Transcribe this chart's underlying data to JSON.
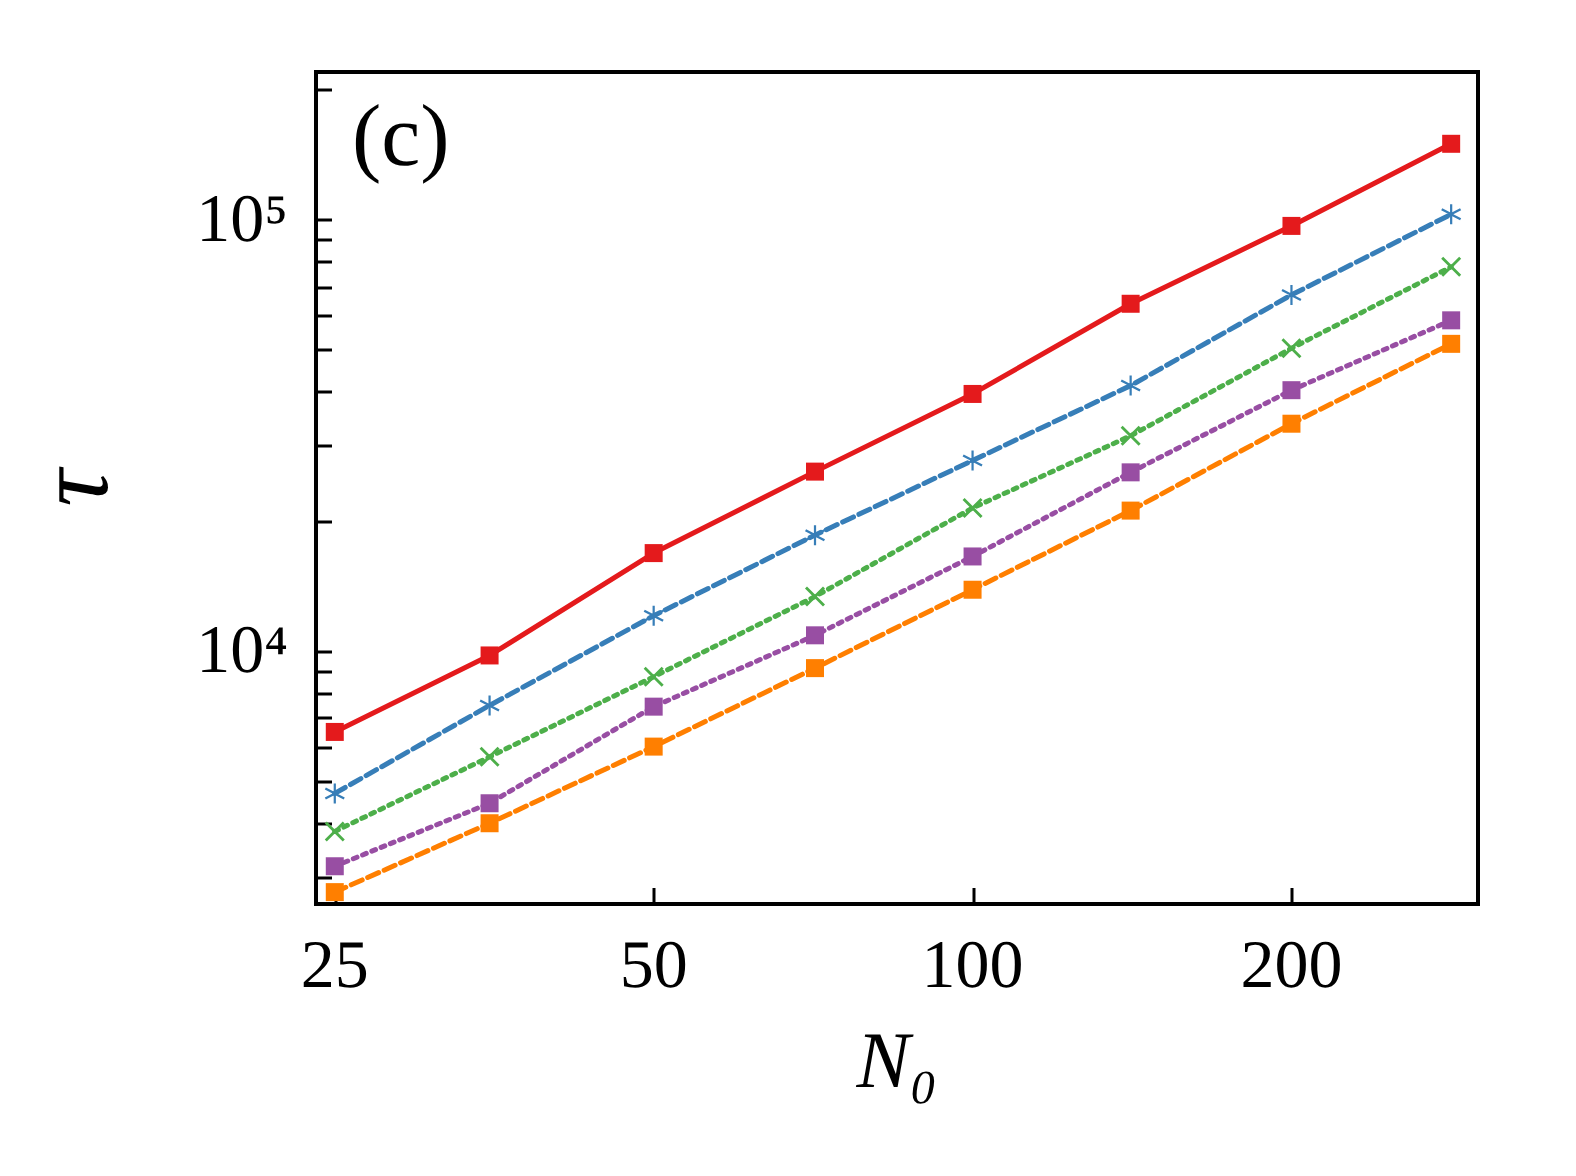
{
  "chart_data": {
    "type": "line",
    "xlabel": "N₀",
    "ylabel": "τ",
    "annotations": [
      "(c)"
    ],
    "x": [
      25,
      35,
      50,
      71,
      100,
      141,
      200,
      283
    ],
    "log": "xy",
    "grid": false,
    "xlim": [
      24,
      300
    ],
    "xticks": [
      25,
      50,
      100,
      200
    ],
    "ylim": [
      2600,
      220000
    ],
    "yticks": [
      {
        "value": 3000,
        "label": null
      },
      {
        "value": 4000,
        "label": null
      },
      {
        "value": 5000,
        "label": null
      },
      {
        "value": 6000,
        "label": null
      },
      {
        "value": 7000,
        "label": null
      },
      {
        "value": 8000,
        "label": null
      },
      {
        "value": 9000,
        "label": null
      },
      {
        "value": 10000,
        "label": "10⁴"
      },
      {
        "value": 20000,
        "label": null
      },
      {
        "value": 30000,
        "label": null
      },
      {
        "value": 40000,
        "label": null
      },
      {
        "value": 50000,
        "label": null
      },
      {
        "value": 60000,
        "label": null
      },
      {
        "value": 70000,
        "label": null
      },
      {
        "value": 80000,
        "label": null
      },
      {
        "value": 90000,
        "label": null
      },
      {
        "value": 100000,
        "label": "10⁵"
      },
      {
        "value": 200000,
        "label": null
      }
    ],
    "series": [
      {
        "color": "#e41a1c",
        "marker": "square",
        "line_style": "solid",
        "values": [
          6510,
          9790,
          16900,
          26100,
          39500,
          63900,
          96800,
          150000
        ]
      },
      {
        "color": "#377eb8",
        "marker": "star",
        "line_style": "dashed",
        "values": [
          4690,
          7500,
          12100,
          18600,
          27700,
          41300,
          67000,
          103000
        ]
      },
      {
        "color": "#4daf4a",
        "marker": "cross",
        "line_style": "dotted",
        "values": [
          3830,
          5700,
          8740,
          13400,
          21500,
          31600,
          50400,
          77800
        ]
      },
      {
        "color": "#984ea3",
        "marker": "square",
        "line_style": "dotted",
        "values": [
          3180,
          4450,
          7450,
          10900,
          16600,
          26000,
          40300,
          58500
        ]
      },
      {
        "color": "#ff7f00",
        "marker": "square",
        "line_style": "dashed",
        "values": [
          2770,
          4000,
          6020,
          9150,
          13900,
          21200,
          33700,
          51600
        ]
      }
    ]
  }
}
